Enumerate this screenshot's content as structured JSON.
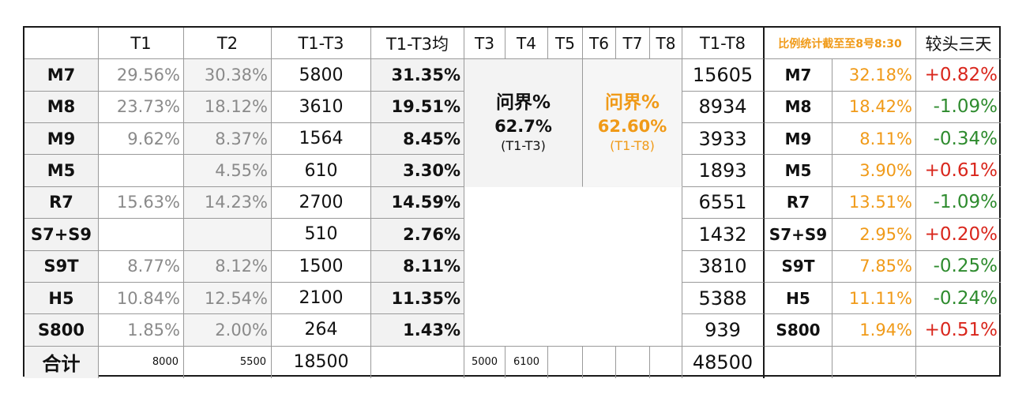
{
  "header": {
    "col_t1": "T1",
    "col_t2": "T2",
    "col_t1t3": "T1-T3",
    "col_t1t3avg": "T1-T3均",
    "col_t3": "T3",
    "col_t4": "T4",
    "col_t5": "T5",
    "col_t6": "T6",
    "col_t7": "T7",
    "col_t8": "T8",
    "col_t1t8": "T1-T8",
    "note": "比例统计截至至8号8:30",
    "col_compare": "较头三天"
  },
  "rows": [
    {
      "model": "M7",
      "t1": "29.56%",
      "t2": "30.38%",
      "t1t3": "5800",
      "avg": "31.35%",
      "t1t8": "15605",
      "model2": "M7",
      "ratio": "32.18%",
      "delta": "+0.82%",
      "dir": "pos"
    },
    {
      "model": "M8",
      "t1": "23.73%",
      "t2": "18.12%",
      "t1t3": "3610",
      "avg": "19.51%",
      "t1t8": "8934",
      "model2": "M8",
      "ratio": "18.42%",
      "delta": "-1.09%",
      "dir": "neg"
    },
    {
      "model": "M9",
      "t1": "9.62%",
      "t2": "8.37%",
      "t1t3": "1564",
      "avg": "8.45%",
      "t1t8": "3933",
      "model2": "M9",
      "ratio": "8.11%",
      "delta": "-0.34%",
      "dir": "neg"
    },
    {
      "model": "M5",
      "t1": "",
      "t2": "4.55%",
      "t1t3": "610",
      "avg": "3.30%",
      "t1t8": "1893",
      "model2": "M5",
      "ratio": "3.90%",
      "delta": "+0.61%",
      "dir": "pos"
    },
    {
      "model": "R7",
      "t1": "15.63%",
      "t2": "14.23%",
      "t1t3": "2700",
      "avg": "14.59%",
      "t1t8": "6551",
      "model2": "R7",
      "ratio": "13.51%",
      "delta": "-1.09%",
      "dir": "neg"
    },
    {
      "model": "S7+S9",
      "t1": "",
      "t2": "",
      "t1t3": "510",
      "avg": "2.76%",
      "t1t8": "1432",
      "model2": "S7+S9",
      "ratio": "2.95%",
      "delta": "+0.20%",
      "dir": "pos"
    },
    {
      "model": "S9T",
      "t1": "8.77%",
      "t2": "8.12%",
      "t1t3": "1500",
      "avg": "8.11%",
      "t1t8": "3810",
      "model2": "S9T",
      "ratio": "7.85%",
      "delta": "-0.25%",
      "dir": "neg"
    },
    {
      "model": "H5",
      "t1": "10.84%",
      "t2": "12.54%",
      "t1t3": "2100",
      "avg": "11.35%",
      "t1t8": "5388",
      "model2": "H5",
      "ratio": "11.11%",
      "delta": "-0.24%",
      "dir": "neg"
    },
    {
      "model": "S800",
      "t1": "1.85%",
      "t2": "2.00%",
      "t1t3": "264",
      "avg": "1.43%",
      "t1t8": "939",
      "model2": "S800",
      "ratio": "1.94%",
      "delta": "+0.51%",
      "dir": "pos"
    }
  ],
  "panel_left": {
    "title": "问界%",
    "value": "62.7%",
    "range": "(T1-T3)"
  },
  "panel_right": {
    "title": "问界%",
    "value": "62.60%",
    "range": "(T1-T8)"
  },
  "total": {
    "label": "合计",
    "t1": "8000",
    "t2": "5500",
    "t1t3": "18500",
    "t3": "5000",
    "t4": "6100",
    "t1t8": "48500"
  },
  "colors": {
    "orange": "#f09a18",
    "positive": "#d9261c",
    "negative": "#2e8b2e"
  }
}
